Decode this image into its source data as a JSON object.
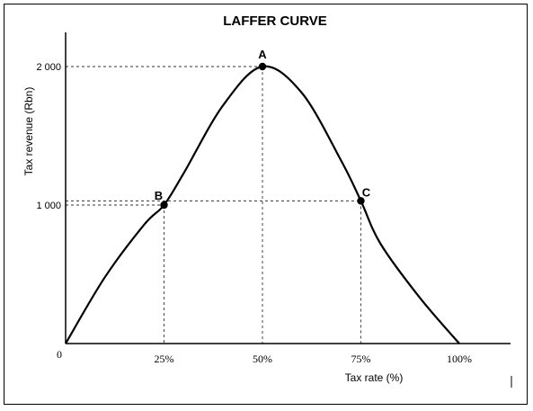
{
  "chart_data": {
    "type": "line",
    "title": "LAFFER CURVE",
    "xlabel": "Tax rate (%)",
    "ylabel": "Tax revenue (Rbn)",
    "xlim": [
      0,
      110
    ],
    "ylim": [
      0,
      2220
    ],
    "origin_label": "0",
    "x_ticks": [
      {
        "value": 25,
        "label": "25%"
      },
      {
        "value": 50,
        "label": "50%"
      },
      {
        "value": 75,
        "label": "75%"
      },
      {
        "value": 100,
        "label": "100%"
      }
    ],
    "y_ticks": [
      {
        "value": 1000,
        "label": "1 000"
      },
      {
        "value": 2000,
        "label": "2 000"
      }
    ],
    "series": [
      {
        "x": [
          0,
          10,
          20,
          25,
          30,
          40,
          50,
          60,
          70,
          75,
          80,
          90,
          100
        ],
        "y": [
          0,
          480,
          860,
          1000,
          1230,
          1720,
          2000,
          1810,
          1320,
          1030,
          720,
          330,
          0
        ]
      }
    ],
    "points": [
      {
        "label": "A",
        "x": 50,
        "y": 2000
      },
      {
        "label": "B",
        "x": 25,
        "y": 1000
      },
      {
        "label": "C",
        "x": 75,
        "y": 1030
      }
    ],
    "colors": {
      "curve": "#000000",
      "guide": "#333333"
    },
    "grid": false
  }
}
